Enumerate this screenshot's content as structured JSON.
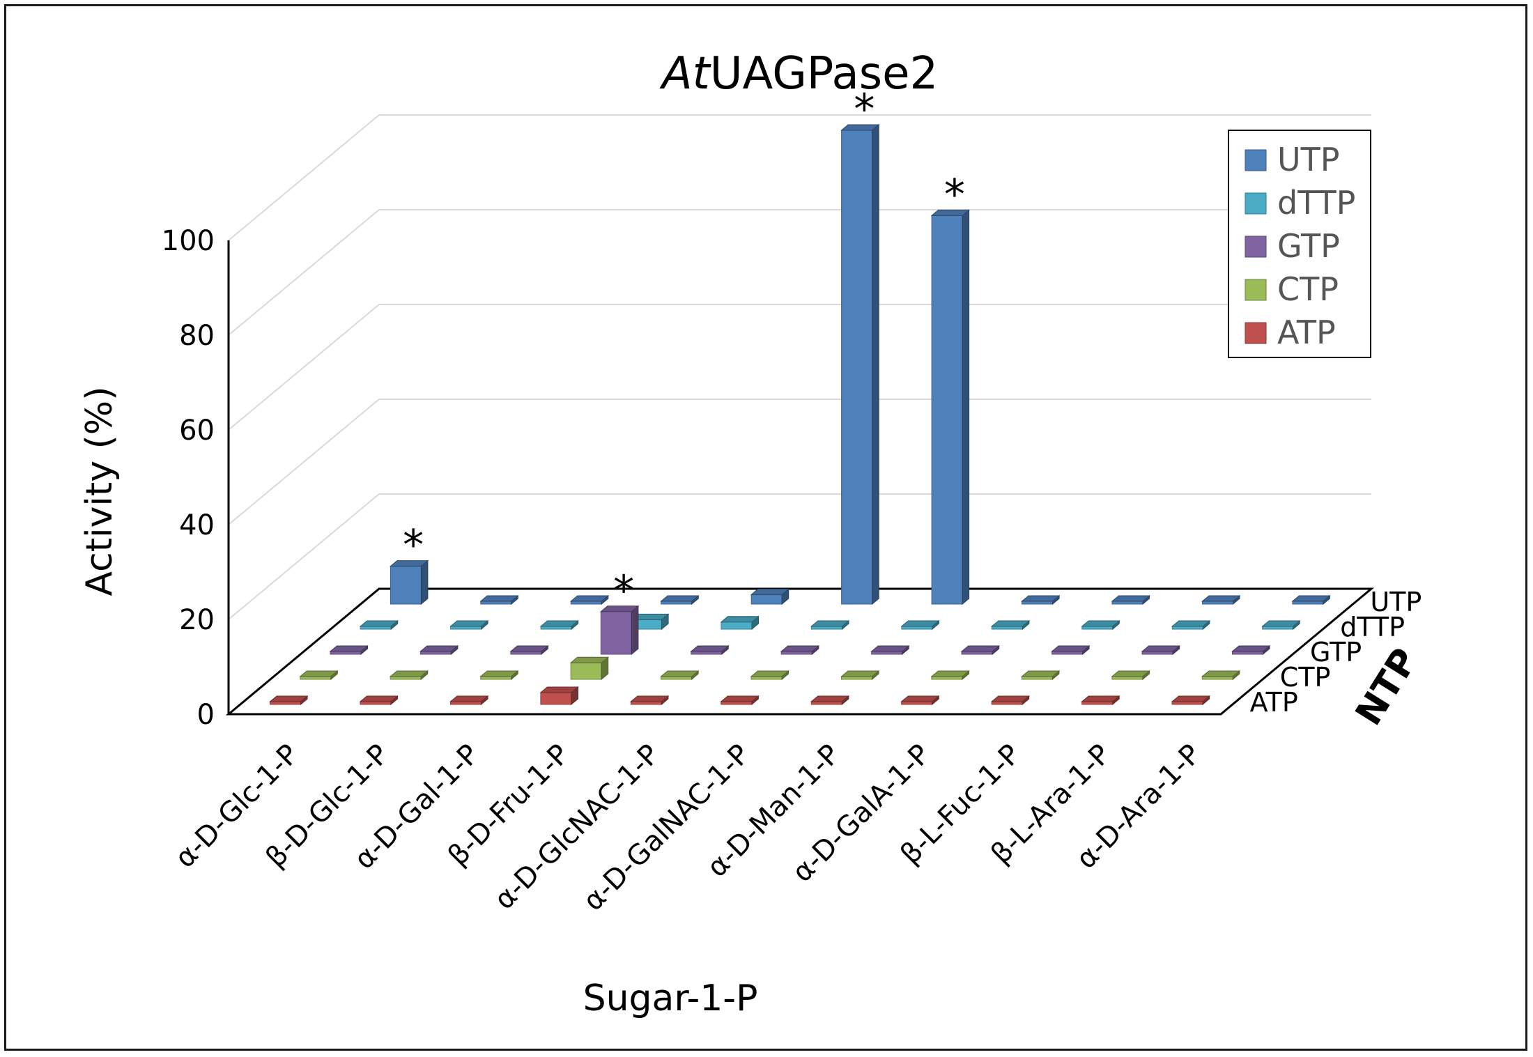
{
  "chart_data": {
    "type": "bar",
    "title_italic": "At",
    "title_rest": "UAGPase2",
    "xlabel": "Sugar-1-P",
    "ylabel": "Activity (%)",
    "zlabel": "NTP",
    "ylim": [
      0,
      100
    ],
    "yticks": [
      "0",
      "20",
      "40",
      "60",
      "80",
      "100"
    ],
    "categories": [
      "α-D-Glc-1-P",
      "β-D-Glc-1-P",
      "α-D-Gal-1-P",
      "β-D-Fru-1-P",
      "α-D-GlcNAC-1-P",
      "α-D-GalNAC-1-P",
      "α-D-Man-1-P",
      "α-D-GalA-1-P",
      "β-L-Fuc-1-P",
      "β-L-Ara-1-P",
      "α-D-Ara-1-P"
    ],
    "series": [
      {
        "name": "ATP",
        "color": "#c0504d",
        "values": [
          0,
          0,
          0,
          2.5,
          0,
          0,
          0,
          0,
          0,
          0,
          0
        ]
      },
      {
        "name": "CTP",
        "color": "#9bbb59",
        "values": [
          0,
          0,
          0,
          3.5,
          0,
          0,
          0,
          0,
          0,
          0,
          0
        ]
      },
      {
        "name": "GTP",
        "color": "#8064a2",
        "values": [
          0,
          0,
          0,
          9,
          0,
          0,
          0,
          0,
          0,
          0,
          0
        ]
      },
      {
        "name": "dTTP",
        "color": "#4bacc6",
        "values": [
          0,
          0,
          0,
          2,
          1.5,
          0,
          0,
          0,
          0,
          0,
          0
        ]
      },
      {
        "name": "UTP",
        "color": "#4f81bd",
        "values": [
          8,
          0,
          0,
          0,
          2,
          100,
          82,
          0,
          0,
          0,
          0
        ]
      }
    ],
    "significance_marker": "*",
    "significant": [
      {
        "series": "UTP",
        "category": "α-D-Glc-1-P"
      },
      {
        "series": "GTP",
        "category": "β-D-Fru-1-P"
      },
      {
        "series": "UTP",
        "category": "α-D-GalNAC-1-P"
      },
      {
        "series": "UTP",
        "category": "α-D-Man-1-P"
      }
    ],
    "legend_order": [
      "UTP",
      "dTTP",
      "GTP",
      "CTP",
      "ATP"
    ],
    "legend_position": "top-right",
    "grid": true
  }
}
